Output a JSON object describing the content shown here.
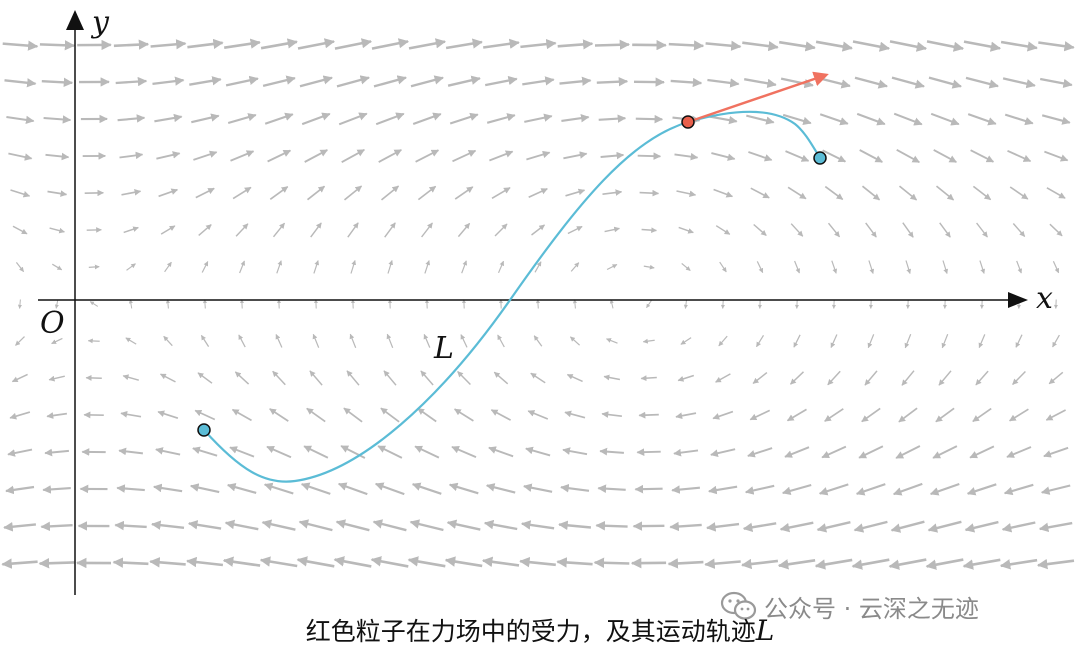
{
  "axes": {
    "x_label": "x",
    "y_label": "y",
    "origin_label": "O"
  },
  "curve": {
    "label": "L",
    "color": "#5bbcd6"
  },
  "markers": {
    "start_color": "#5bbcd6",
    "end_color": "#5bbcd6",
    "particle_color": "#e8604c"
  },
  "force_arrow_color": "#f07260",
  "field_arrow_color": "#b9b9b9",
  "caption": {
    "text": "红色粒子在力场中的受力，及其运动轨迹",
    "symbol": "L"
  },
  "watermark": {
    "text": "公众号 · 云深之无迹"
  }
}
